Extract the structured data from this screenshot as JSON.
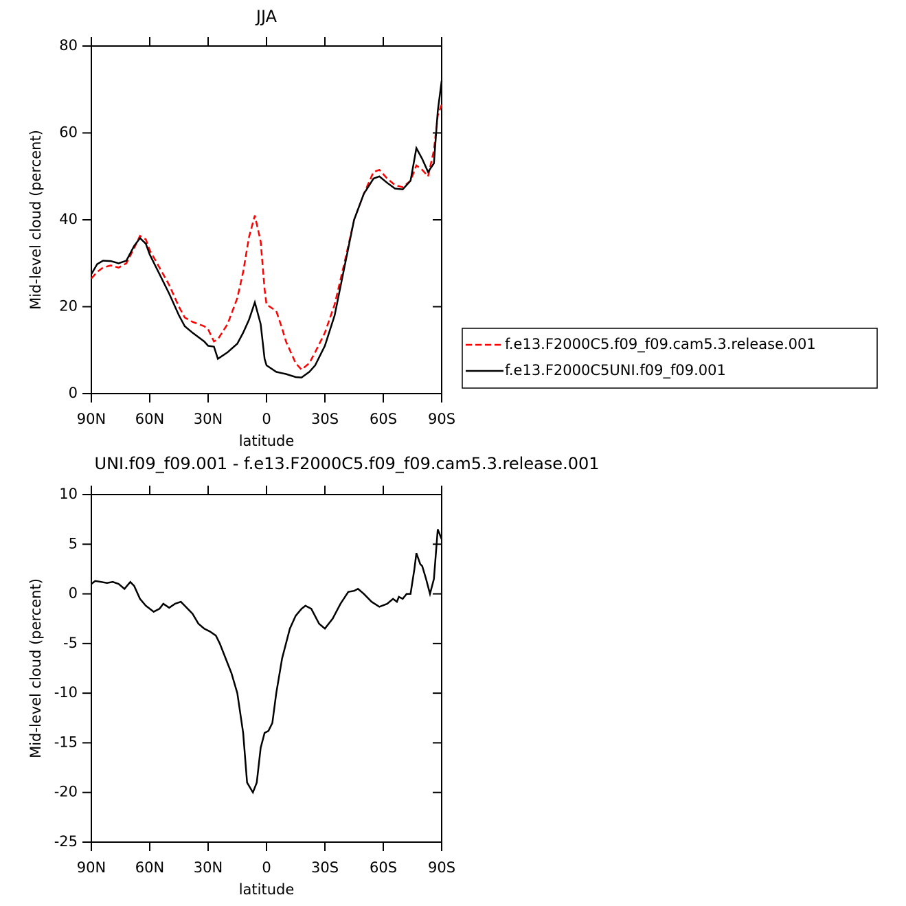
{
  "chart_data": [
    {
      "type": "line",
      "title": "JJA",
      "xlabel": "latitude",
      "ylabel": "Mid-level cloud (percent)",
      "xlim": [
        90,
        -90
      ],
      "xticks": [
        {
          "value": 90,
          "label": "90N"
        },
        {
          "value": 60,
          "label": "60N"
        },
        {
          "value": 30,
          "label": "30N"
        },
        0,
        {
          "value": -30,
          "label": "30S"
        },
        {
          "value": -60,
          "label": "60S"
        },
        {
          "value": -90,
          "label": "90S"
        }
      ],
      "ylim": [
        0,
        80
      ],
      "yticks": [
        0,
        20,
        40,
        60,
        80
      ],
      "x": [
        90,
        87,
        84,
        80,
        76,
        72,
        68,
        65,
        62,
        60,
        55,
        50,
        45,
        42,
        38,
        35,
        32,
        30,
        27,
        25,
        20,
        15,
        12,
        9,
        6,
        3,
        1,
        0,
        -5,
        -8,
        -10,
        -15,
        -18,
        -22,
        -25,
        -30,
        -35,
        -40,
        -45,
        -50,
        -55,
        -58,
        -62,
        -66,
        -70,
        -74,
        -77,
        -80,
        -83,
        -86,
        -88,
        -90
      ],
      "series": [
        {
          "name": "f.e13.F2000C5.f09_f09.cam5.3.release.001",
          "color": "#ff0000",
          "dash": "dashed",
          "values": [
            26.5,
            28,
            29,
            29.5,
            29,
            30,
            33.5,
            36.3,
            35.5,
            33,
            29,
            25,
            20,
            17.5,
            16.5,
            16,
            15.5,
            14.8,
            12,
            12.5,
            16,
            22,
            28,
            36,
            41,
            35,
            24,
            20.5,
            19,
            15,
            12,
            7,
            5.5,
            7,
            9.5,
            14,
            20.5,
            30,
            40,
            46,
            51,
            51.5,
            49.5,
            48,
            47.5,
            49,
            52.5,
            51.5,
            50,
            56,
            64,
            66.5
          ]
        },
        {
          "name": "f.e13.F2000C5UNI.f09_f09.001",
          "color": "#000000",
          "dash": "solid",
          "values": [
            27.5,
            29.8,
            30.6,
            30.5,
            30,
            30.6,
            34,
            35.8,
            34.5,
            32,
            27.5,
            23,
            18,
            15.5,
            14,
            13,
            12,
            11,
            10.8,
            8,
            9.5,
            11.5,
            14,
            17,
            21,
            16,
            8,
            6.5,
            5,
            4.7,
            4.5,
            3.8,
            3.7,
            5,
            6.5,
            11,
            18,
            29,
            40,
            46,
            49.5,
            50,
            48.5,
            47.2,
            47,
            49,
            56.5,
            54,
            51,
            53,
            65,
            72
          ]
        }
      ]
    },
    {
      "type": "line",
      "title": "UNI.f09_f09.001 - f.e13.F2000C5.f09_f09.cam5.3.release.001",
      "xlabel": "latitude",
      "ylabel": "Mid-level cloud (percent)",
      "xlim": [
        90,
        -90
      ],
      "xticks": [
        {
          "value": 90,
          "label": "90N"
        },
        {
          "value": 60,
          "label": "60N"
        },
        {
          "value": 30,
          "label": "30N"
        },
        0,
        {
          "value": -30,
          "label": "30S"
        },
        {
          "value": -60,
          "label": "60S"
        },
        {
          "value": -90,
          "label": "90S"
        }
      ],
      "ylim": [
        -25,
        10
      ],
      "yticks": [
        -25,
        -20,
        -15,
        -10,
        -5,
        0,
        5,
        10
      ],
      "x": [
        90,
        88,
        85,
        82,
        79,
        76,
        73,
        70,
        68,
        65,
        62,
        58,
        55,
        53,
        50,
        47,
        44,
        42,
        38,
        35,
        32,
        29,
        26,
        24,
        21,
        18,
        15,
        12,
        10,
        7,
        5,
        3,
        1,
        -1,
        -3,
        -5,
        -8,
        -12,
        -15,
        -18,
        -20,
        -23,
        -27,
        -30,
        -34,
        -38,
        -42,
        -45,
        -47,
        -50,
        -54,
        -58,
        -62,
        -65,
        -67,
        -68,
        -70,
        -72,
        -74,
        -76,
        -77,
        -79,
        -80,
        -82,
        -84,
        -86,
        -88,
        -90
      ],
      "series": [
        {
          "color": "#000000",
          "dash": "solid",
          "values": [
            1,
            1.3,
            1.2,
            1.1,
            1.2,
            1,
            0.5,
            1.2,
            0.8,
            -0.5,
            -1.2,
            -1.8,
            -1.5,
            -1,
            -1.4,
            -1,
            -0.8,
            -1.2,
            -2,
            -3,
            -3.5,
            -3.8,
            -4.2,
            -5,
            -6.5,
            -8,
            -10,
            -14,
            -19,
            -20,
            -19,
            -15.5,
            -14,
            -13.8,
            -13,
            -10,
            -6.5,
            -3.5,
            -2.2,
            -1.5,
            -1.2,
            -1.5,
            -3,
            -3.5,
            -2.5,
            -1,
            0.2,
            0.3,
            0.5,
            0,
            -0.8,
            -1.3,
            -1,
            -0.5,
            -0.8,
            -0.3,
            -0.5,
            0,
            0,
            2.5,
            4.1,
            3,
            2.8,
            1.5,
            0,
            1.5,
            6.5,
            5.5
          ]
        }
      ]
    }
  ]
}
